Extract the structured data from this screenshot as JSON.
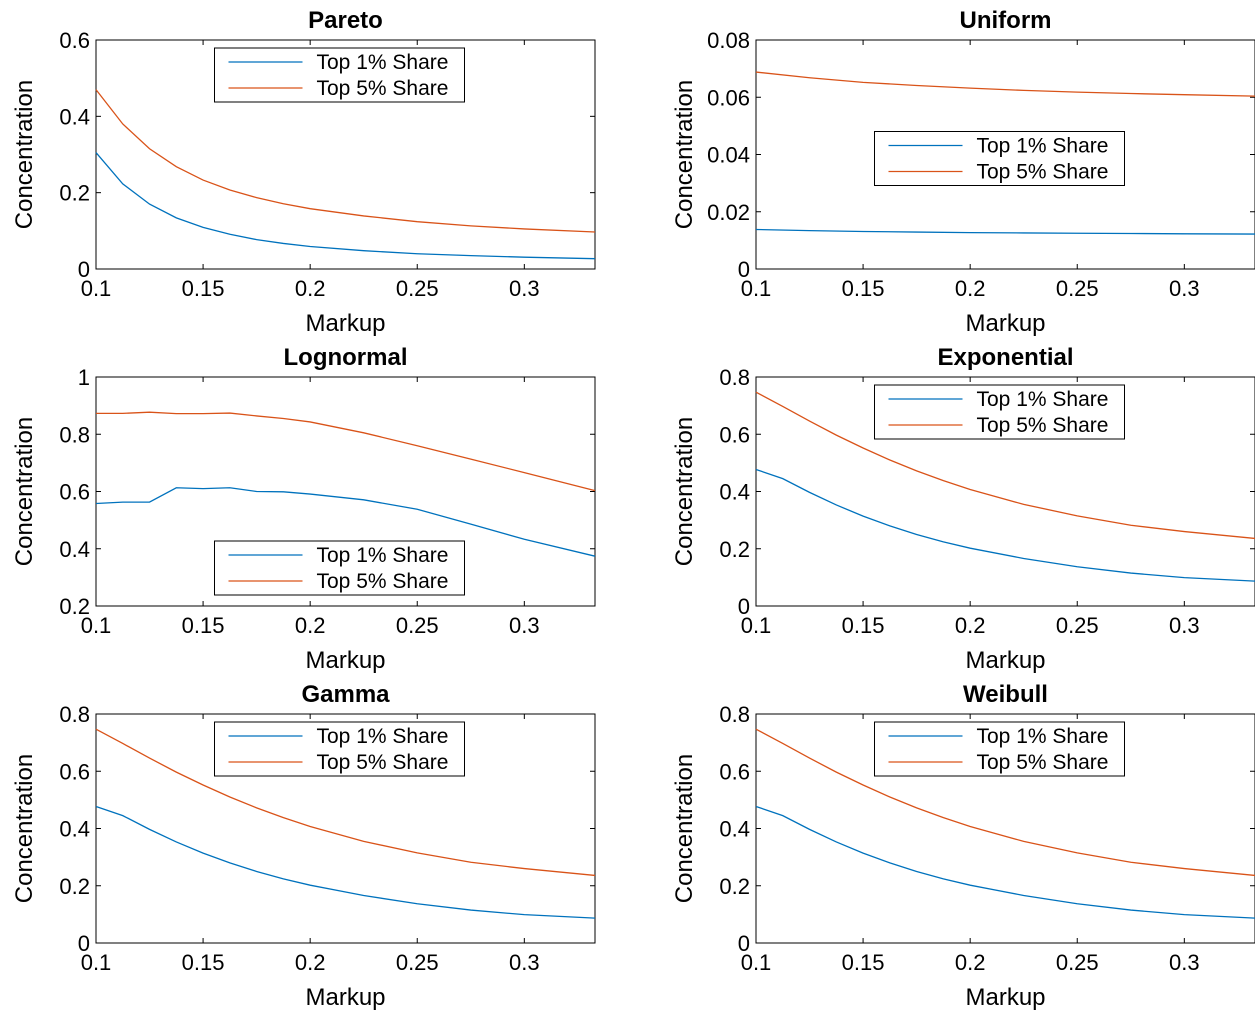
{
  "chart_data": [
    {
      "type": "line",
      "title": "Pareto",
      "xlabel": "Markup",
      "ylabel": "Concentration",
      "xlim": [
        0.1,
        0.333
      ],
      "ylim": [
        0,
        0.6
      ],
      "xticks": [
        "0.1",
        "0.15",
        "0.2",
        "0.25",
        "0.3"
      ],
      "yticks": [
        "0",
        "0.2",
        "0.4",
        "0.6"
      ],
      "legend_position": "top-center",
      "x": [
        0.1,
        0.1125,
        0.125,
        0.1375,
        0.15,
        0.1625,
        0.175,
        0.1875,
        0.2,
        0.225,
        0.25,
        0.275,
        0.3,
        0.333
      ],
      "series": [
        {
          "name": "Top 1% Share",
          "color": "#0072BD",
          "values": [
            0.305,
            0.223,
            0.17,
            0.134,
            0.109,
            0.091,
            0.077,
            0.067,
            0.059,
            0.048,
            0.04,
            0.035,
            0.031,
            0.027
          ]
        },
        {
          "name": "Top 5% Share",
          "color": "#D95319",
          "values": [
            0.47,
            0.38,
            0.315,
            0.268,
            0.233,
            0.207,
            0.187,
            0.171,
            0.158,
            0.139,
            0.124,
            0.113,
            0.105,
            0.097
          ]
        }
      ]
    },
    {
      "type": "line",
      "title": "Uniform",
      "xlabel": "Markup",
      "ylabel": "Concentration",
      "xlim": [
        0.1,
        0.333
      ],
      "ylim": [
        0,
        0.08
      ],
      "xticks": [
        "0.1",
        "0.15",
        "0.2",
        "0.25",
        "0.3"
      ],
      "yticks": [
        "0",
        "0.02",
        "0.04",
        "0.06",
        "0.08"
      ],
      "legend_position": "center",
      "x": [
        0.1,
        0.125,
        0.15,
        0.175,
        0.2,
        0.225,
        0.25,
        0.275,
        0.3,
        0.333
      ],
      "series": [
        {
          "name": "Top 1% Share",
          "color": "#0072BD",
          "values": [
            0.0138,
            0.0134,
            0.0131,
            0.0129,
            0.0127,
            0.0126,
            0.0125,
            0.0124,
            0.0123,
            0.0122
          ]
        },
        {
          "name": "Top 5% Share",
          "color": "#D95319",
          "values": [
            0.0688,
            0.0668,
            0.0652,
            0.0641,
            0.0632,
            0.0624,
            0.0618,
            0.0613,
            0.0609,
            0.0604
          ]
        }
      ]
    },
    {
      "type": "line",
      "title": "Lognormal",
      "xlabel": "Markup",
      "ylabel": "Concentration",
      "xlim": [
        0.1,
        0.333
      ],
      "ylim": [
        0.2,
        1
      ],
      "xticks": [
        "0.1",
        "0.15",
        "0.2",
        "0.25",
        "0.3"
      ],
      "yticks": [
        "0.2",
        "0.4",
        "0.6",
        "0.8",
        "1"
      ],
      "legend_position": "bottom-center",
      "x": [
        0.1,
        0.1125,
        0.125,
        0.1375,
        0.15,
        0.1625,
        0.175,
        0.1875,
        0.2,
        0.225,
        0.25,
        0.275,
        0.3,
        0.333
      ],
      "series": [
        {
          "name": "Top 1% Share",
          "color": "#0072BD",
          "values": [
            0.558,
            0.563,
            0.563,
            0.613,
            0.61,
            0.613,
            0.6,
            0.599,
            0.591,
            0.571,
            0.538,
            0.486,
            0.433,
            0.374
          ]
        },
        {
          "name": "Top 5% Share",
          "color": "#D95319",
          "values": [
            0.873,
            0.873,
            0.877,
            0.872,
            0.872,
            0.874,
            0.864,
            0.855,
            0.843,
            0.805,
            0.76,
            0.713,
            0.666,
            0.603
          ]
        }
      ]
    },
    {
      "type": "line",
      "title": "Exponential",
      "xlabel": "Markup",
      "ylabel": "Concentration",
      "xlim": [
        0.1,
        0.333
      ],
      "ylim": [
        0,
        0.8
      ],
      "xticks": [
        "0.1",
        "0.15",
        "0.2",
        "0.25",
        "0.3"
      ],
      "yticks": [
        "0",
        "0.2",
        "0.4",
        "0.6",
        "0.8"
      ],
      "legend_position": "top-center",
      "x": [
        0.1,
        0.1125,
        0.125,
        0.1375,
        0.15,
        0.1625,
        0.175,
        0.1875,
        0.2,
        0.225,
        0.25,
        0.275,
        0.3,
        0.333
      ],
      "series": [
        {
          "name": "Top 1% Share",
          "color": "#0072BD",
          "values": [
            0.477,
            0.445,
            0.397,
            0.353,
            0.314,
            0.28,
            0.25,
            0.224,
            0.202,
            0.166,
            0.137,
            0.115,
            0.099,
            0.087
          ]
        },
        {
          "name": "Top 5% Share",
          "color": "#D95319",
          "values": [
            0.747,
            0.697,
            0.646,
            0.597,
            0.552,
            0.51,
            0.472,
            0.438,
            0.407,
            0.355,
            0.315,
            0.282,
            0.26,
            0.236
          ]
        }
      ]
    },
    {
      "type": "line",
      "title": "Gamma",
      "xlabel": "Markup",
      "ylabel": "Concentration",
      "xlim": [
        0.1,
        0.333
      ],
      "ylim": [
        0,
        0.8
      ],
      "xticks": [
        "0.1",
        "0.15",
        "0.2",
        "0.25",
        "0.3"
      ],
      "yticks": [
        "0",
        "0.2",
        "0.4",
        "0.6",
        "0.8"
      ],
      "legend_position": "top-center",
      "x": [
        0.1,
        0.1125,
        0.125,
        0.1375,
        0.15,
        0.1625,
        0.175,
        0.1875,
        0.2,
        0.225,
        0.25,
        0.275,
        0.3,
        0.333
      ],
      "series": [
        {
          "name": "Top 1% Share",
          "color": "#0072BD",
          "values": [
            0.477,
            0.445,
            0.397,
            0.353,
            0.314,
            0.28,
            0.25,
            0.224,
            0.202,
            0.166,
            0.137,
            0.115,
            0.099,
            0.087
          ]
        },
        {
          "name": "Top 5% Share",
          "color": "#D95319",
          "values": [
            0.747,
            0.697,
            0.646,
            0.597,
            0.552,
            0.51,
            0.472,
            0.438,
            0.407,
            0.355,
            0.315,
            0.282,
            0.26,
            0.236
          ]
        }
      ]
    },
    {
      "type": "line",
      "title": "Weibull",
      "xlabel": "Markup",
      "ylabel": "Concentration",
      "xlim": [
        0.1,
        0.333
      ],
      "ylim": [
        0,
        0.8
      ],
      "xticks": [
        "0.1",
        "0.15",
        "0.2",
        "0.25",
        "0.3"
      ],
      "yticks": [
        "0",
        "0.2",
        "0.4",
        "0.6",
        "0.8"
      ],
      "legend_position": "top-center",
      "x": [
        0.1,
        0.1125,
        0.125,
        0.1375,
        0.15,
        0.1625,
        0.175,
        0.1875,
        0.2,
        0.225,
        0.25,
        0.275,
        0.3,
        0.333
      ],
      "series": [
        {
          "name": "Top 1% Share",
          "color": "#0072BD",
          "values": [
            0.477,
            0.445,
            0.397,
            0.353,
            0.314,
            0.28,
            0.25,
            0.224,
            0.202,
            0.166,
            0.137,
            0.115,
            0.099,
            0.087
          ]
        },
        {
          "name": "Top 5% Share",
          "color": "#D95319",
          "values": [
            0.747,
            0.697,
            0.646,
            0.597,
            0.552,
            0.51,
            0.472,
            0.438,
            0.407,
            0.355,
            0.315,
            0.282,
            0.26,
            0.236
          ]
        }
      ]
    }
  ]
}
